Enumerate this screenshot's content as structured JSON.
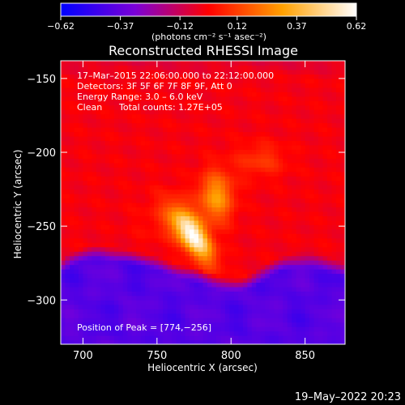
{
  "chart_data": {
    "type": "heatmap",
    "title": "Reconstructed RHESSI Image",
    "xlabel": "Heliocentric X (arcsec)",
    "ylabel": "Heliocentric Y (arcsec)",
    "xlim": [
      685,
      877
    ],
    "ylim": [
      -330,
      -138
    ],
    "xticks": [
      700,
      750,
      800,
      850
    ],
    "yticks": [
      -150,
      -200,
      -250,
      -300
    ],
    "colorbar": {
      "min": -0.62,
      "max": 0.62,
      "tick_values": [
        -0.62,
        -0.37,
        -0.12,
        0.12,
        0.37,
        0.62
      ],
      "tick_labels": [
        "−0.62",
        "−0.37",
        "−0.12",
        "0.12",
        "0.37",
        "0.62"
      ],
      "unit_label": "(photons cm⁻² s⁻¹ asec⁻²)",
      "colormap": [
        "#0000ff",
        "#7a00d8",
        "#ff0000",
        "#ffa000",
        "#ffffff"
      ]
    },
    "sources": [
      {
        "x": 774,
        "y": -256,
        "peak": 0.62,
        "sx": 6,
        "sy": 14,
        "rotation_deg": -35
      },
      {
        "x": 790,
        "y": -230,
        "peak": 0.32,
        "sx": 8,
        "sy": 12
      },
      {
        "x": 820,
        "y": -205,
        "peak": 0.12,
        "sx": 12,
        "sy": 8
      },
      {
        "x": 760,
        "y": -245,
        "peak": 0.08,
        "sx": 14,
        "sy": 12
      }
    ],
    "background_level": -0.02,
    "negative_region": {
      "level": -0.4,
      "note": "lower part of image"
    }
  },
  "info_lines": [
    "17–Mar–2015 22:06:00.000 to 22:12:00.000",
    "Detectors: 3F 5F 6F 7F 8F 9F, Att 0",
    "Energy Range: 3.0 – 6.0 keV",
    "Clean",
    "Total counts: 1.27E+05"
  ],
  "peak_label": "Position of Peak = [774,−256]",
  "footer_timestamp": "19–May–2022 20:23"
}
